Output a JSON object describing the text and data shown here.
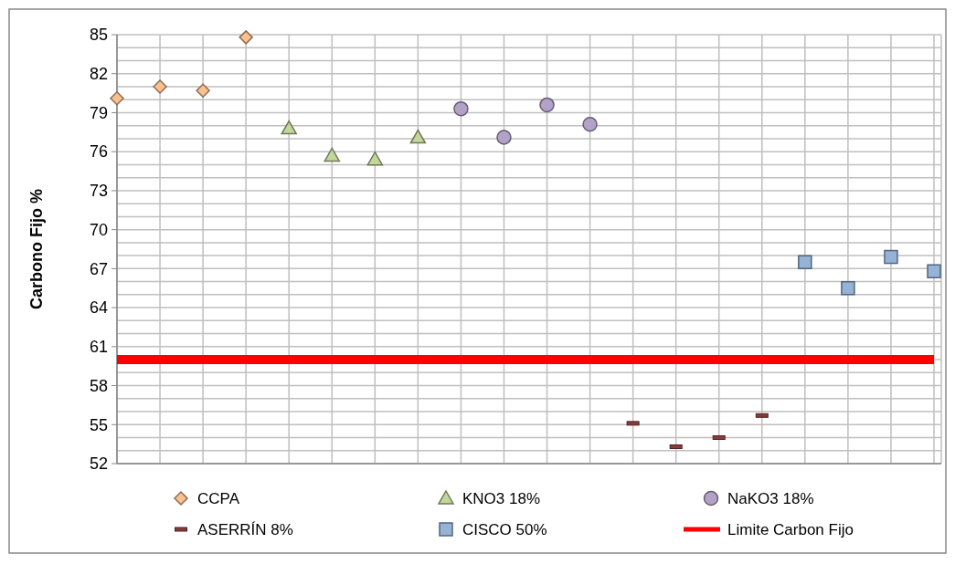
{
  "chart_data": {
    "type": "scatter",
    "ylabel": "Carbono Fijo %",
    "categories": [
      null,
      null,
      null,
      null,
      null,
      null,
      null,
      null,
      null,
      null,
      null,
      null,
      null,
      null,
      null,
      null,
      null,
      null,
      null,
      null
    ],
    "series": [
      {
        "name": "CCPA",
        "color": "#fac090",
        "marker": "diamond",
        "values": [
          80.1,
          81.0,
          80.7,
          84.8,
          null,
          null,
          null,
          null,
          null,
          null,
          null,
          null,
          null,
          null,
          null,
          null,
          null,
          null,
          null,
          null
        ]
      },
      {
        "name": "KNO3 18%",
        "color": "#c3d69b",
        "marker": "triangle",
        "values": [
          null,
          null,
          null,
          null,
          77.8,
          75.7,
          75.4,
          77.1,
          null,
          null,
          null,
          null,
          null,
          null,
          null,
          null,
          null,
          null,
          null,
          null
        ]
      },
      {
        "name": "NaKO3 18%",
        "color": "#b3a2c7",
        "marker": "circle",
        "values": [
          null,
          null,
          null,
          null,
          null,
          null,
          null,
          null,
          79.3,
          77.1,
          79.6,
          78.1,
          null,
          null,
          null,
          null,
          null,
          null,
          null,
          null
        ]
      },
      {
        "name": "ASERRÍN 8%",
        "color": "#8b3a3a",
        "values": [
          null,
          null,
          null,
          null,
          null,
          null,
          null,
          null,
          null,
          null,
          null,
          null,
          55.1,
          53.3,
          54.0,
          55.7,
          null,
          null,
          null,
          null
        ]
      },
      {
        "name": "CISCO 50%",
        "color": "#95b3d7",
        "marker": "square",
        "values": [
          null,
          null,
          null,
          null,
          null,
          null,
          null,
          null,
          null,
          null,
          null,
          null,
          null,
          null,
          null,
          null,
          67.5,
          65.5,
          67.9,
          66.8
        ]
      },
      {
        "name": "Limite Carbon Fijo",
        "type": "line",
        "color": "#ff0000",
        "marker": "none",
        "values": [
          60,
          60,
          60,
          60,
          60,
          60,
          60,
          60,
          60,
          60,
          60,
          60,
          60,
          60,
          60,
          60,
          60,
          60,
          60,
          60
        ]
      }
    ],
    "ylim": [
      52,
      85
    ],
    "yticks": [
      52,
      {
        "value": 53,
        "label": null
      },
      {
        "value": 54,
        "label": null
      },
      55,
      {
        "value": 56,
        "label": null
      },
      {
        "value": 57,
        "label": null
      },
      58,
      {
        "value": 59,
        "label": null
      },
      {
        "value": 60,
        "label": null
      },
      61,
      {
        "value": 62,
        "label": null
      },
      {
        "value": 63,
        "label": null
      },
      64,
      {
        "value": 65,
        "label": null
      },
      {
        "value": 66,
        "label": null
      },
      67,
      {
        "value": 68,
        "label": null
      },
      {
        "value": 69,
        "label": null
      },
      70,
      {
        "value": 71,
        "label": null
      },
      {
        "value": 72,
        "label": null
      },
      73,
      {
        "value": 74,
        "label": null
      },
      {
        "value": 75,
        "label": null
      },
      76,
      {
        "value": 77,
        "label": null
      },
      {
        "value": 78,
        "label": null
      },
      79,
      {
        "value": 80,
        "label": null
      },
      {
        "value": 81,
        "label": null
      },
      82,
      {
        "value": 83,
        "label": null
      },
      {
        "value": 84,
        "label": null
      },
      85
    ],
    "grid": true,
    "legend": "bottom"
  }
}
